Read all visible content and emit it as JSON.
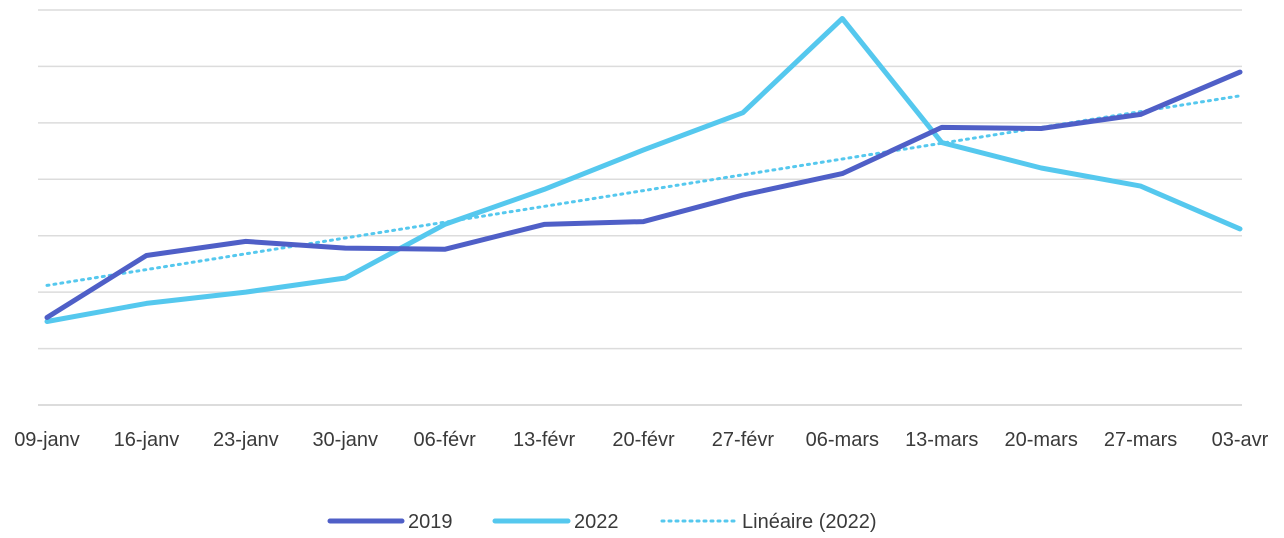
{
  "chart_data": {
    "type": "line",
    "title": "",
    "xlabel": "",
    "ylabel": "",
    "categories": [
      "09-janv",
      "16-janv",
      "23-janv",
      "30-janv",
      "06-févr",
      "13-févr",
      "20-févr",
      "27-févr",
      "06-mars",
      "13-mars",
      "20-mars",
      "27-mars",
      "03-avr"
    ],
    "ylim": [
      0,
      7
    ],
    "y_tick_labels_shown": false,
    "grid": true,
    "legend_position": "bottom",
    "series": [
      {
        "name": "2019",
        "color": "#4f5fc7",
        "style": "solid",
        "values": [
          1.55,
          2.65,
          2.9,
          2.78,
          2.76,
          3.2,
          3.25,
          3.72,
          4.1,
          4.92,
          4.9,
          5.15,
          5.9
        ]
      },
      {
        "name": "2022",
        "color": "#55c8ee",
        "style": "solid",
        "values": [
          1.48,
          1.8,
          2.0,
          2.25,
          3.2,
          3.82,
          4.52,
          5.18,
          6.85,
          4.65,
          4.2,
          3.88,
          3.12
        ]
      },
      {
        "name": "Linéaire (2022)",
        "color": "#55c8ee",
        "style": "dotted",
        "trendline_of": "2022",
        "values": [
          2.12,
          2.4,
          2.68,
          2.96,
          3.24,
          3.52,
          3.8,
          4.08,
          4.36,
          4.64,
          4.92,
          5.2,
          5.48
        ]
      }
    ]
  }
}
